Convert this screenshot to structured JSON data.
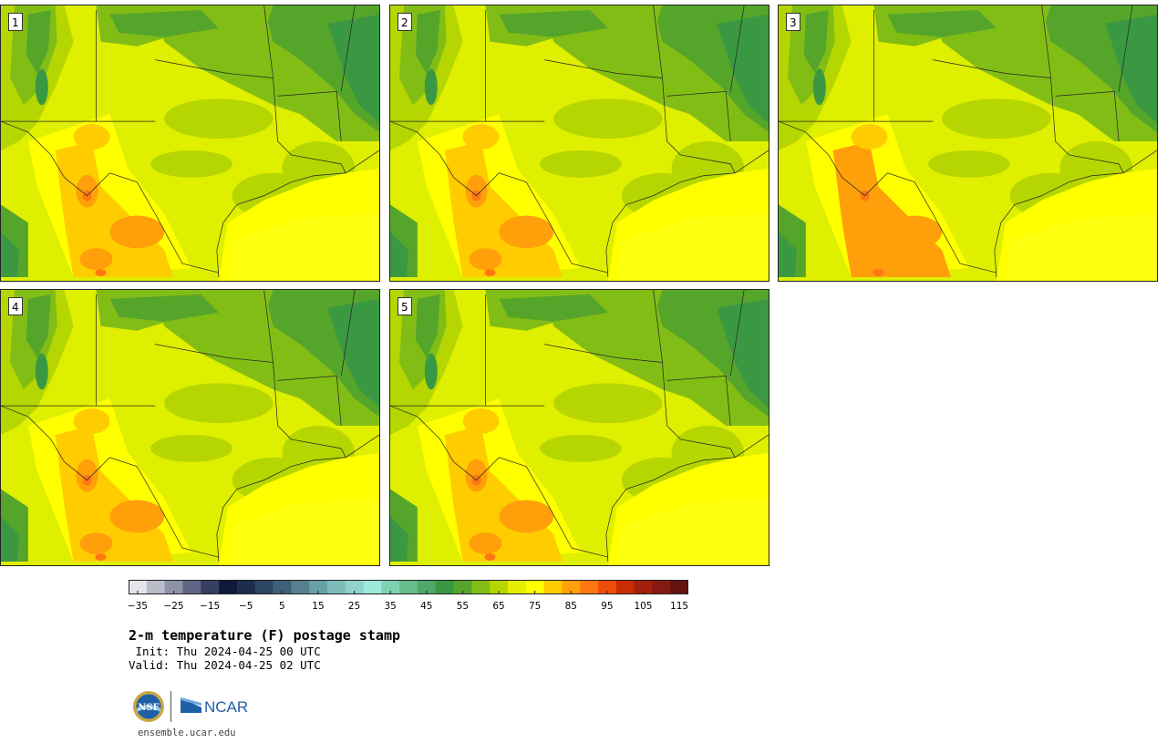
{
  "panels": [
    {
      "label": "1"
    },
    {
      "label": "2"
    },
    {
      "label": "3"
    },
    {
      "label": "4"
    },
    {
      "label": "5"
    }
  ],
  "colorbar": {
    "colors": [
      "#e3e5ea",
      "#b9bcc9",
      "#8e93a7",
      "#5f6784",
      "#363f62",
      "#0f1a3b",
      "#1d2d4d",
      "#2c4562",
      "#3e6078",
      "#56808e",
      "#68a1a4",
      "#7dbbb9",
      "#8fd3cc",
      "#9ee8dc",
      "#7fd2b1",
      "#67bd8c",
      "#4da968",
      "#3a9842",
      "#55a52a",
      "#82bd16",
      "#b5d600",
      "#e4ee00",
      "#ffff00",
      "#ffcc00",
      "#ff9f0a",
      "#ff7713",
      "#f24c0a",
      "#c82e06",
      "#a3200c",
      "#861a10",
      "#661411"
    ],
    "ticks": [
      "−35",
      "−25",
      "−15",
      "−5",
      "5",
      "15",
      "25",
      "35",
      "45",
      "55",
      "65",
      "75",
      "85",
      "95",
      "105",
      "115"
    ]
  },
  "title": "2-m temperature (F) postage stamp",
  "init": " Init: Thu 2024-04-25 00 UTC",
  "valid": "Valid: Thu 2024-04-25 02 UTC",
  "logos": {
    "nsf": "NSF",
    "ncar": "NCAR"
  },
  "site": "ensemble.ucar.edu"
}
